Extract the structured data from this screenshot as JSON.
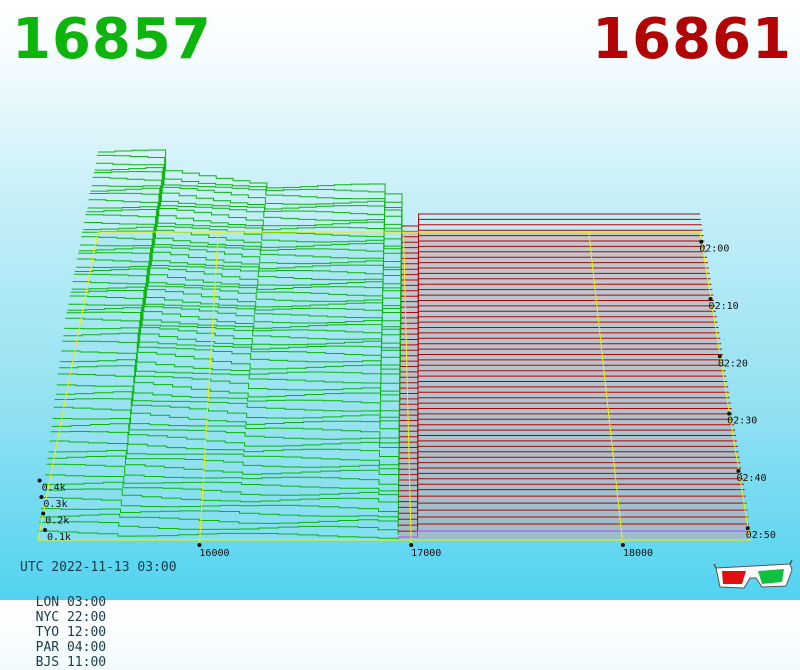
{
  "header": {
    "best_bid": "16857",
    "best_ask": "16861"
  },
  "footer": {
    "utc": "UTC 2022-11-13 03:00",
    "zones": [
      {
        "label": "LON 03:00"
      },
      {
        "label": "NYC 22:00"
      },
      {
        "label": "TYO 12:00"
      },
      {
        "label": "PAR 04:00"
      },
      {
        "label": "BJS 11:00"
      }
    ]
  },
  "chart_data": {
    "type": "area",
    "title": "",
    "price_axis": {
      "ticks": [
        "16000",
        "17000",
        "18000"
      ]
    },
    "time_axis": {
      "ticks": [
        "02:00",
        "02:10",
        "02:20",
        "02:30",
        "02:40",
        "02:50"
      ]
    },
    "volume_axis": {
      "ticks": [
        "0.1k",
        "0.2k",
        "0.3k",
        "0.4k"
      ]
    },
    "series": [
      {
        "name": "bids",
        "color": "#0cb40c"
      },
      {
        "name": "asks",
        "color": "#b10404"
      }
    ],
    "grid": true
  },
  "colors": {
    "bid": "#0cb40c",
    "ask": "#b10404",
    "frame": "#f0f000",
    "highlight": "#c040ff"
  },
  "icons": {
    "glasses": "3d-glasses-icon"
  }
}
